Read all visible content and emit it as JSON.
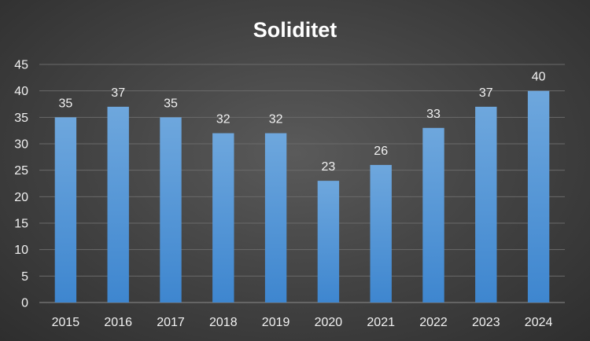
{
  "chart_data": {
    "type": "bar",
    "title": "Soliditet",
    "xlabel": "",
    "ylabel": "",
    "categories": [
      "2015",
      "2016",
      "2017",
      "2018",
      "2019",
      "2020",
      "2021",
      "2022",
      "2023",
      "2024"
    ],
    "values": [
      35,
      37,
      35,
      32,
      32,
      23,
      26,
      33,
      37,
      40
    ],
    "data_labels": [
      "35",
      "37",
      "35",
      "32",
      "32",
      "23",
      "26",
      "33",
      "37",
      "40"
    ],
    "ylim": [
      0,
      45
    ],
    "yticks": [
      "0",
      "5",
      "10",
      "15",
      "20",
      "25",
      "30",
      "35",
      "40",
      "45"
    ],
    "grid": true,
    "legend": "none",
    "colors": {
      "bar_top": "#6ea7dd",
      "bar_bottom": "#3e86cf",
      "text": "#f2f2f2"
    }
  }
}
